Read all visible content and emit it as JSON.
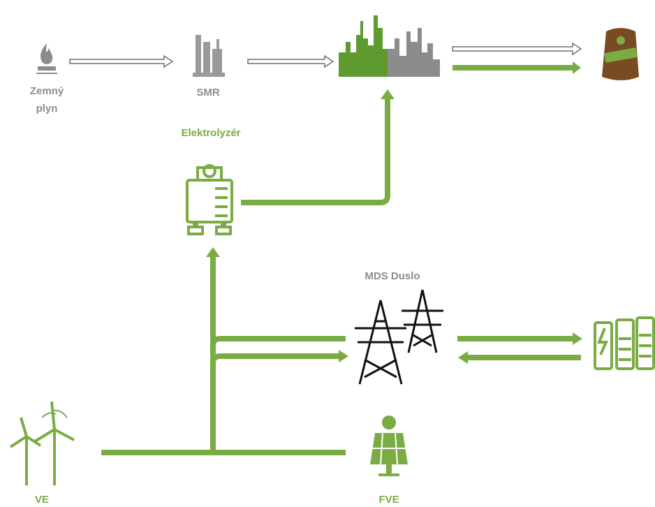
{
  "nodes": {
    "natural_gas": {
      "label": [
        "Zemný",
        "plyn"
      ]
    },
    "smr": {
      "label": "SMR"
    },
    "electrolyzer": {
      "label": "Elektrolyzér"
    },
    "grid": {
      "label": "MDS Duslo"
    },
    "wind": {
      "label": "VE"
    },
    "solar": {
      "label": "FVE"
    }
  }
}
